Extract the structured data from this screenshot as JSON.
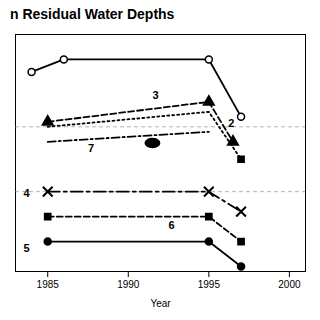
{
  "chart_data": {
    "type": "line",
    "title": "n Residual Water Depths",
    "xlabel": "Year",
    "xlim": [
      1983,
      2001
    ],
    "xticks": [
      1985,
      1990,
      1995,
      2000
    ],
    "ylim": [
      1.0,
      10.5
    ],
    "yticks": [
      6.8,
      4.2
    ],
    "grid": "y",
    "tick_labels": "x",
    "series": [
      {
        "x": [
          1984,
          1986,
          1995,
          1997
        ],
        "values": [
          9.0,
          9.5,
          9.5,
          7.2
        ],
        "color": "black",
        "line_style": "solid",
        "marker": "circle_open"
      },
      {
        "x": [
          1985,
          1995,
          1996.5
        ],
        "values": [
          7.0,
          7.8,
          6.2
        ],
        "color": "black",
        "line_style": "dashed",
        "marker": "triangle"
      },
      {
        "x": [
          1985,
          1995,
          1997
        ],
        "values": [
          6.8,
          7.4,
          5.5
        ],
        "color": "black",
        "line_style": "dotted",
        "marker": "none"
      },
      {
        "x": [
          1985,
          1995
        ],
        "values": [
          6.2,
          6.6
        ],
        "color": "black",
        "line_style": "dashdot",
        "marker": "none"
      },
      {
        "x": [
          1985,
          1995,
          1997
        ],
        "values": [
          4.2,
          4.2,
          3.4
        ],
        "color": "black",
        "line_style": "longdashdot",
        "marker": "x"
      },
      {
        "x": [
          1985,
          1995,
          1997
        ],
        "values": [
          3.2,
          3.2,
          2.2
        ],
        "color": "black",
        "line_style": "dashed",
        "marker": "square"
      },
      {
        "x": [
          1985,
          1995,
          1997
        ],
        "values": [
          2.2,
          2.2,
          1.2
        ],
        "color": "black",
        "line_style": "solid",
        "marker": "circle"
      }
    ],
    "points": [
      {
        "x": 1997,
        "y": 5.5,
        "color": "black",
        "marker": "square"
      },
      {
        "x": 1991.5,
        "y": 6.15,
        "color": "black",
        "marker": "ellipse"
      }
    ],
    "annotations": [
      {
        "text": "3",
        "x": 1991.5,
        "y": 7.9
      },
      {
        "text": "2",
        "x": 1996.2,
        "y": 6.8
      },
      {
        "text": "7",
        "x": 1987.5,
        "y": 5.8
      },
      {
        "text": "4",
        "x": 1983.5,
        "y": 4.0
      },
      {
        "text": "6",
        "x": 1992.5,
        "y": 2.7
      },
      {
        "text": "5",
        "x": 1983.5,
        "y": 1.8
      }
    ]
  }
}
